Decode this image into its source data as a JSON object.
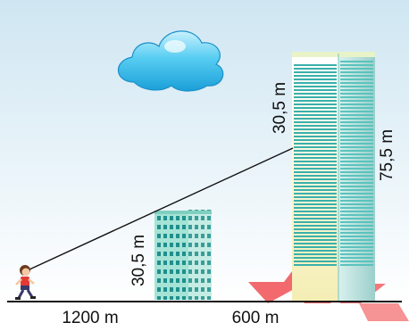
{
  "labels": {
    "small_building_height": "30,5 m",
    "upper_segment": "30,5 m",
    "tall_building_height": "75,5 m",
    "distance_near": "1200 m",
    "distance_far": "600 m"
  },
  "colors": {
    "sky_top": "#cfe6f2",
    "sky_bottom": "#ffffff",
    "cloud": "#48c4ef",
    "small_building": "#9fe0d3",
    "tall_building_face": "#fbf6c4",
    "tall_building_side": "#bfe7e2",
    "window_stripe": "#3fb3ad",
    "ground_line": "#111111",
    "watermark": "#f1565b"
  },
  "icons": [
    "cloud-icon",
    "child-runner-icon",
    "watermark-icon"
  ]
}
